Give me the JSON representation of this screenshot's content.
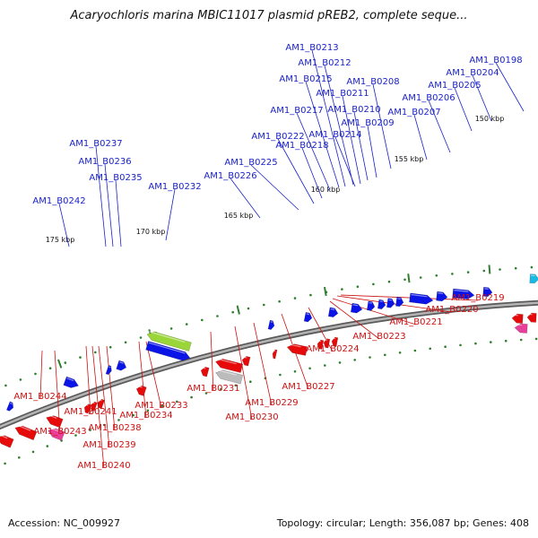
{
  "title": "Acaryochloris marina MBIC11017 plasmid pREB2, complete seque...",
  "footer": {
    "accession": "Accession: NC_009927",
    "summary": "Topology: circular; Length: 356,087 bp; Genes: 408"
  },
  "colors": {
    "forward_gene": "#0a14e6",
    "reverse_gene": "#e60a0a",
    "forward_label": "#1a22c8",
    "reverse_label": "#cc1111",
    "backbone": "#8a8a8a",
    "tick": "#2f7f2f",
    "rna_feature": "#9ad63a",
    "pseudo_feature": "#bcbcbc",
    "misc_feature": "#e8409a",
    "cyan_feature": "#19b9e6"
  },
  "kbp_ticks": [
    "150 kbp",
    "155 kbp",
    "160 kbp",
    "165 kbp",
    "170 kbp",
    "175 kbp"
  ],
  "forward_labels": [
    "AM1_B0198",
    "AM1_B0204",
    "AM1_B0205",
    "AM1_B0206",
    "AM1_B0207",
    "AM1_B0208",
    "AM1_B0209",
    "AM1_B0210",
    "AM1_B0211",
    "AM1_B0212",
    "AM1_B0213",
    "AM1_B0214",
    "AM1_B0215",
    "AM1_B0217",
    "AM1_B0218",
    "AM1_B0222",
    "AM1_B0225",
    "AM1_B0226",
    "AM1_B0232",
    "AM1_B0235",
    "AM1_B0236",
    "AM1_B0237",
    "AM1_B0242"
  ],
  "reverse_labels": [
    "AM1_B0219",
    "AM1_B0220",
    "AM1_B0221",
    "AM1_B0223",
    "AM1_B0224",
    "AM1_B0227",
    "AM1_B0229",
    "AM1_B0230",
    "AM1_B0231",
    "AM1_B0233",
    "AM1_B0234",
    "AM1_B0238",
    "AM1_B0239",
    "AM1_B0240",
    "AM1_B0241",
    "AM1_B0243",
    "AM1_B0244"
  ]
}
